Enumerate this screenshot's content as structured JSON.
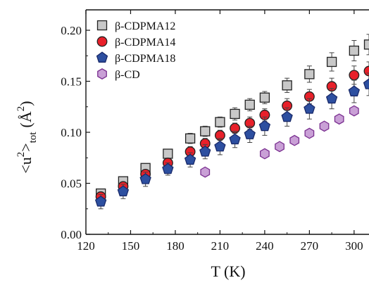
{
  "chart_data": {
    "type": "scatter",
    "xlabel": "T (K)",
    "ylabel": {
      "open": "<u",
      "sup": "2",
      "close": ">",
      "sub": "tot",
      "unit_open": "(Å",
      "unit_sup": "2",
      "unit_close": ")"
    },
    "xlim": [
      120,
      310
    ],
    "ylim": [
      0.0,
      0.22
    ],
    "x_ticks": [
      120,
      150,
      180,
      210,
      240,
      270,
      300
    ],
    "y_ticks": [
      0.0,
      0.05,
      0.1,
      0.15,
      0.2
    ],
    "x_tick_labels": [
      "120",
      "150",
      "180",
      "210",
      "240",
      "270",
      "300"
    ],
    "y_tick_labels": [
      "0.00",
      "0.05",
      "0.10",
      "0.15",
      "0.20"
    ],
    "grid": false,
    "legend_position": "top-left",
    "series": [
      {
        "name": "β-CDPMA12",
        "marker": "square",
        "color": "#c8c8c8",
        "stroke": "#222222",
        "x": [
          130,
          145,
          160,
          175,
          190,
          200,
          210,
          220,
          230,
          240,
          255,
          270,
          285,
          300,
          310
        ],
        "y": [
          0.04,
          0.052,
          0.065,
          0.079,
          0.094,
          0.101,
          0.11,
          0.118,
          0.127,
          0.134,
          0.146,
          0.157,
          0.169,
          0.18,
          0.186
        ],
        "err": [
          0.004,
          0.004,
          0.004,
          0.004,
          0.005,
          0.005,
          0.005,
          0.006,
          0.006,
          0.006,
          0.007,
          0.008,
          0.009,
          0.01,
          0.01
        ]
      },
      {
        "name": "β-CDPMA14",
        "marker": "circle",
        "color": "#e8202a",
        "stroke": "#222222",
        "x": [
          130,
          145,
          160,
          175,
          190,
          200,
          210,
          220,
          230,
          240,
          255,
          270,
          285,
          300,
          310
        ],
        "y": [
          0.037,
          0.047,
          0.059,
          0.07,
          0.081,
          0.089,
          0.097,
          0.104,
          0.109,
          0.117,
          0.126,
          0.135,
          0.145,
          0.156,
          0.16
        ],
        "err": [
          0.004,
          0.004,
          0.004,
          0.004,
          0.005,
          0.005,
          0.005,
          0.005,
          0.006,
          0.006,
          0.007,
          0.007,
          0.008,
          0.009,
          0.009
        ]
      },
      {
        "name": "β-CDPMA18",
        "marker": "pentagon",
        "color": "#2d4fa0",
        "stroke": "#1a2a6a",
        "x": [
          130,
          145,
          160,
          175,
          190,
          200,
          210,
          220,
          230,
          240,
          255,
          270,
          285,
          300,
          310
        ],
        "y": [
          0.032,
          0.042,
          0.054,
          0.064,
          0.073,
          0.081,
          0.086,
          0.093,
          0.098,
          0.106,
          0.115,
          0.123,
          0.133,
          0.14,
          0.147
        ],
        "err": [
          0.007,
          0.007,
          0.007,
          0.006,
          0.007,
          0.007,
          0.008,
          0.008,
          0.008,
          0.009,
          0.009,
          0.01,
          0.01,
          0.011,
          0.011
        ]
      },
      {
        "name": "β-CD",
        "marker": "hexagon",
        "color": "#c9a0d6",
        "stroke": "#7a2f90",
        "x": [
          200,
          240,
          250,
          260,
          270,
          280,
          290,
          300
        ],
        "y": [
          0.061,
          0.079,
          0.086,
          0.092,
          0.099,
          0.106,
          0.113,
          0.121
        ],
        "err": [
          0,
          0,
          0,
          0,
          0,
          0,
          0,
          0
        ]
      }
    ]
  }
}
